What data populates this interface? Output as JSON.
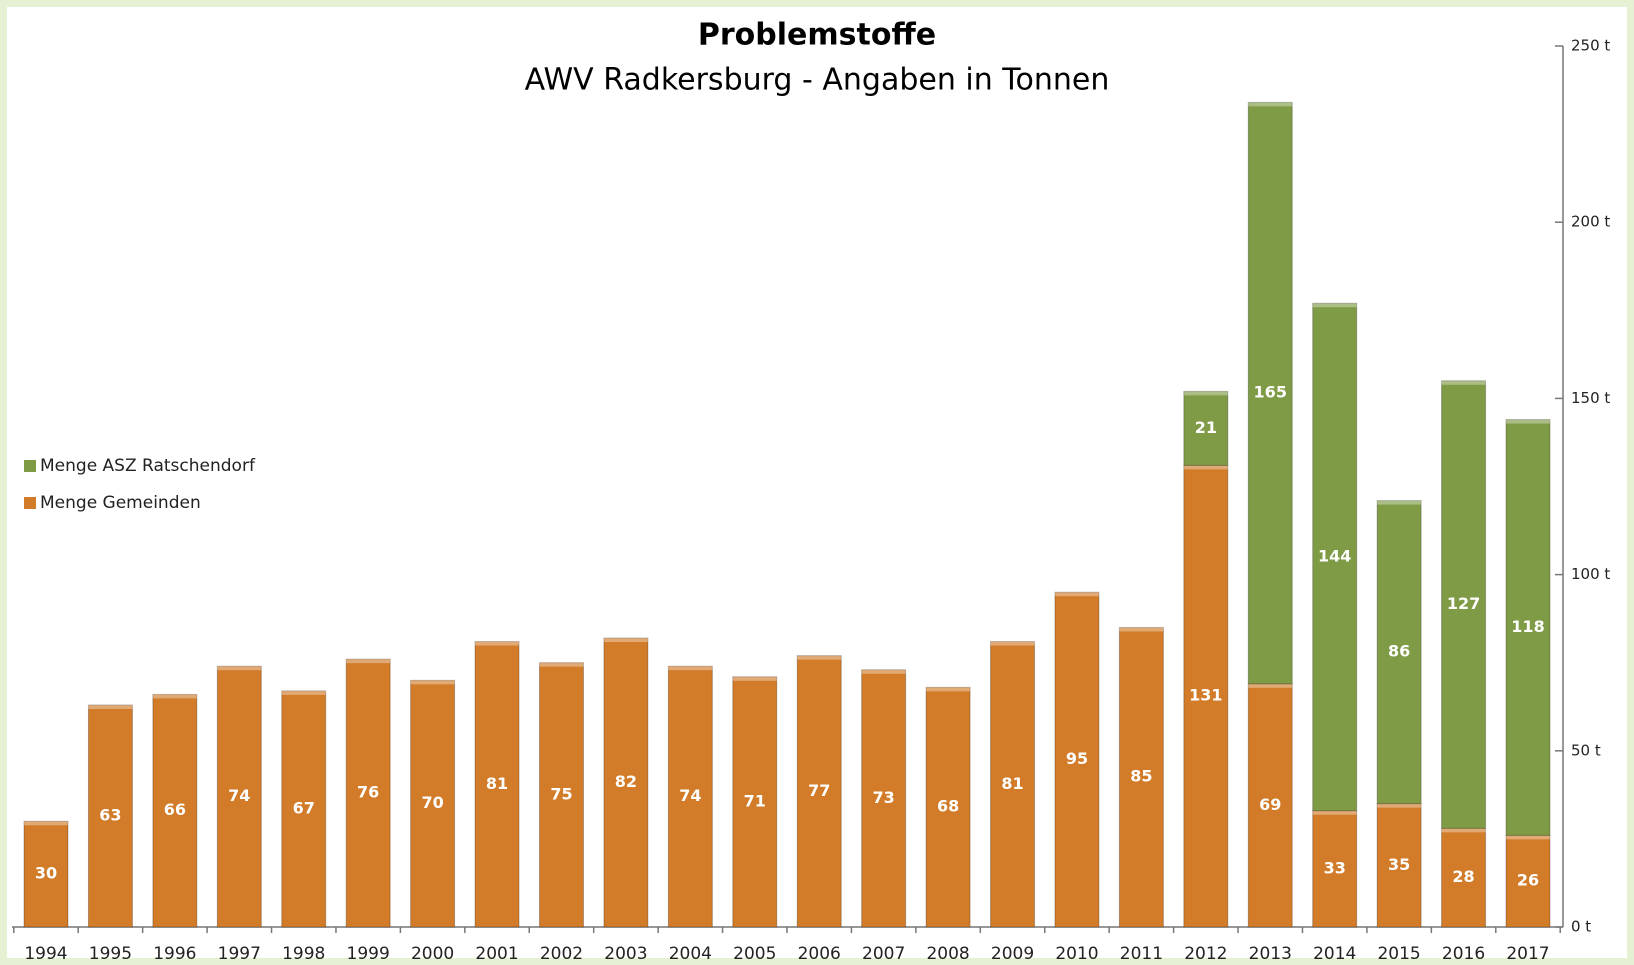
{
  "chart_data": {
    "type": "stacked_bar",
    "title": "Problemstoffe",
    "subtitle": "AWV Radkersburg - Angaben in Tonnen",
    "categories": [
      "1994",
      "1995",
      "1996",
      "1997",
      "1998",
      "1999",
      "2000",
      "2001",
      "2002",
      "2003",
      "2004",
      "2005",
      "2006",
      "2007",
      "2008",
      "2009",
      "2010",
      "2011",
      "2012",
      "2013",
      "2014",
      "2015",
      "2016",
      "2017"
    ],
    "series": [
      {
        "name": "Menge Gemeinden",
        "color": "#d27b28",
        "values": [
          30,
          63,
          66,
          74,
          67,
          76,
          70,
          81,
          75,
          82,
          74,
          71,
          77,
          73,
          68,
          81,
          95,
          85,
          131,
          69,
          33,
          35,
          28,
          26
        ]
      },
      {
        "name": "Menge ASZ Ratschendorf",
        "color": "#7f9b45",
        "values": [
          null,
          null,
          null,
          null,
          null,
          null,
          null,
          null,
          null,
          null,
          null,
          null,
          null,
          null,
          null,
          null,
          null,
          null,
          21,
          165,
          144,
          86,
          127,
          118
        ]
      }
    ],
    "ylim": [
      0,
      250
    ],
    "yticks": [
      {
        "value": 0,
        "label": "0 t"
      },
      {
        "value": 50,
        "label": "50 t"
      },
      {
        "value": 100,
        "label": "100 t"
      },
      {
        "value": 150,
        "label": "150 t"
      },
      {
        "value": 200,
        "label": "200 t"
      },
      {
        "value": 250,
        "label": "250 t"
      }
    ],
    "axis_side": "right",
    "legend": "left"
  }
}
